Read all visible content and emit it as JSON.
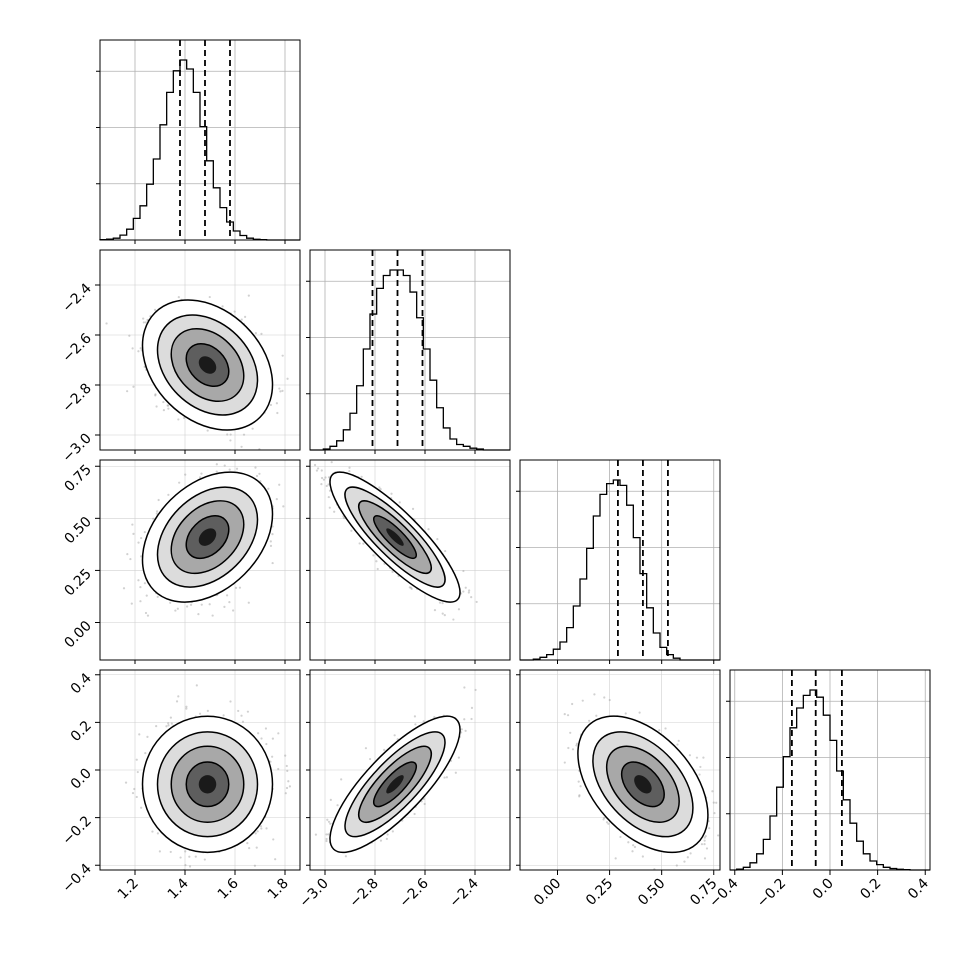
{
  "chart_data": {
    "type": "corner",
    "n_params": 4,
    "grid": true,
    "params": [
      {
        "range": [
          1.06,
          1.86
        ],
        "ticks": [
          "1.2",
          "1.4",
          "1.6",
          "1.8"
        ],
        "tick_values": [
          1.2,
          1.4,
          1.6,
          1.8
        ],
        "quantiles": [
          1.38,
          1.48,
          1.58
        ],
        "hist": [
          0.002,
          0.005,
          0.01,
          0.027,
          0.06,
          0.12,
          0.19,
          0.31,
          0.45,
          0.64,
          0.82,
          0.94,
          1.0,
          0.95,
          0.82,
          0.63,
          0.44,
          0.29,
          0.18,
          0.1,
          0.05,
          0.025,
          0.01,
          0.004,
          0.002,
          0.0,
          0.0,
          0.0,
          0.0,
          0.0
        ],
        "hist_ticks": [
          1,
          2,
          3
        ],
        "mean": 1.49,
        "sd": 0.1
      },
      {
        "range": [
          -3.06,
          -2.26
        ],
        "ticks": [
          "−3.0",
          "−2.8",
          "−2.6",
          "−2.4"
        ],
        "tick_values": [
          -3.0,
          -2.8,
          -2.6,
          -2.4
        ],
        "quantiles": [
          -2.81,
          -2.71,
          -2.61
        ],
        "hist": [
          0.0,
          0.0,
          0.005,
          0.02,
          0.05,
          0.11,
          0.2,
          0.35,
          0.55,
          0.74,
          0.88,
          0.95,
          0.98,
          0.98,
          0.95,
          0.86,
          0.72,
          0.55,
          0.38,
          0.23,
          0.12,
          0.06,
          0.03,
          0.02,
          0.01,
          0.005,
          0.0,
          0.0,
          0.0,
          0.0
        ],
        "hist_ticks": [
          1,
          2,
          3
        ],
        "mean": -2.72,
        "sd": 0.1
      },
      {
        "range": [
          -0.18,
          0.78
        ],
        "ticks": [
          "0.00",
          "0.25",
          "0.50",
          "0.75"
        ],
        "tick_values": [
          0.0,
          0.25,
          0.5,
          0.75
        ],
        "y_ticks": [
          "0.00",
          "0.25",
          "0.50",
          "0.75"
        ],
        "quantiles": [
          0.29,
          0.41,
          0.53
        ],
        "hist": [
          0.0,
          0.0,
          0.005,
          0.015,
          0.03,
          0.06,
          0.1,
          0.18,
          0.3,
          0.45,
          0.62,
          0.8,
          0.92,
          0.98,
          1.0,
          0.97,
          0.86,
          0.68,
          0.48,
          0.29,
          0.15,
          0.07,
          0.03,
          0.01,
          0.0,
          0.0,
          0.0,
          0.0,
          0.0,
          0.0
        ],
        "hist_ticks": [
          1,
          2,
          3
        ],
        "mean": 0.41,
        "sd": 0.12
      },
      {
        "range": [
          -0.42,
          0.42
        ],
        "ticks": [
          "−0.4",
          "−0.2",
          "0.0",
          "0.2",
          "0.4"
        ],
        "tick_values": [
          -0.4,
          -0.2,
          0.0,
          0.2,
          0.4
        ],
        "quantiles": [
          -0.16,
          -0.06,
          0.05
        ],
        "hist": [
          0.0,
          0.005,
          0.015,
          0.04,
          0.09,
          0.17,
          0.3,
          0.46,
          0.63,
          0.79,
          0.9,
          0.97,
          1.0,
          0.96,
          0.86,
          0.72,
          0.55,
          0.39,
          0.26,
          0.16,
          0.09,
          0.05,
          0.03,
          0.015,
          0.008,
          0.004,
          0.002,
          0.0,
          0.0,
          0.0
        ],
        "hist_ticks": [
          1,
          2,
          3
        ],
        "mean": -0.06,
        "sd": 0.11
      }
    ],
    "correlations": {
      "1-0": -0.3,
      "2-0": 0.35,
      "2-1": -0.85,
      "3-0": 0.0,
      "3-1": 0.8,
      "3-2": -0.45
    }
  }
}
